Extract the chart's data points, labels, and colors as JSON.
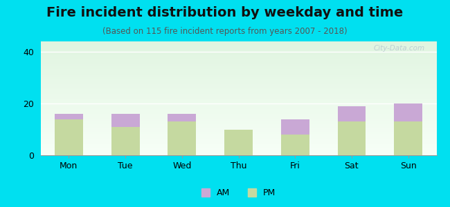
{
  "title": "Fire incident distribution by weekday and time",
  "subtitle": "(Based on 115 fire incident reports from years 2007 - 2018)",
  "categories": [
    "Mon",
    "Tue",
    "Wed",
    "Thu",
    "Fri",
    "Sat",
    "Sun"
  ],
  "pm_values": [
    14,
    11,
    13,
    10,
    8,
    13,
    13
  ],
  "am_values": [
    2,
    5,
    3,
    0,
    6,
    6,
    7
  ],
  "am_color": "#c9a8d5",
  "pm_color": "#c5d9a0",
  "background_outer": "#00e0f0",
  "ylim": [
    0,
    44
  ],
  "yticks": [
    0,
    20,
    40
  ],
  "bar_width": 0.5,
  "title_fontsize": 14,
  "subtitle_fontsize": 8.5,
  "tick_fontsize": 9,
  "legend_fontsize": 9,
  "watermark": "City-Data.com"
}
